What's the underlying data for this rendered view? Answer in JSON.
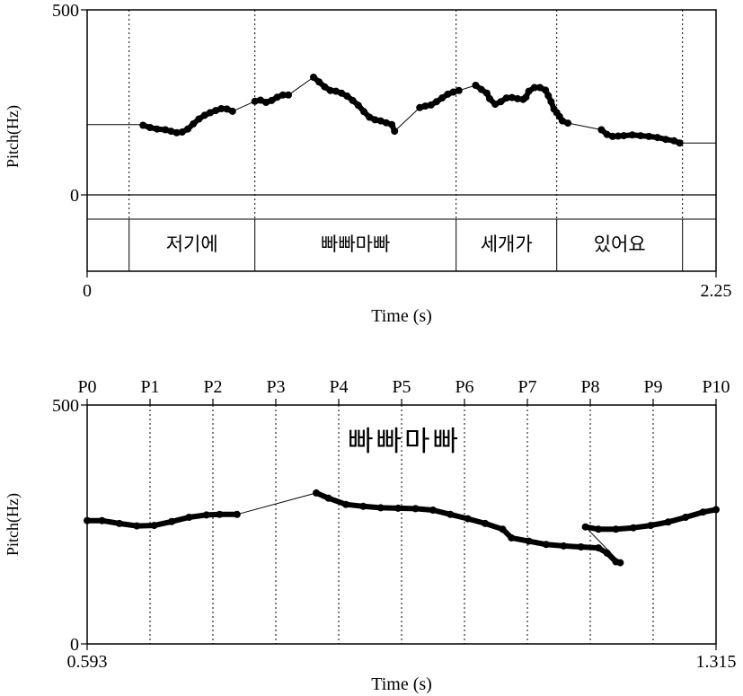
{
  "chart_data": [
    {
      "type": "line",
      "ylabel": "Pitch(Hz)",
      "xlabel": "Time (s)",
      "xlim": [
        0,
        2.25
      ],
      "ylim": [
        0,
        500
      ],
      "y_tick_labels": [
        "500",
        "0"
      ],
      "x_tick_labels": [
        "0",
        "2.25"
      ],
      "boundaries": [
        0.15,
        0.6,
        1.32,
        1.68,
        2.13
      ],
      "tier_labels": [
        {
          "start": 0.15,
          "end": 0.6,
          "text": "저기에"
        },
        {
          "start": 0.6,
          "end": 1.32,
          "text": "빠빠마빠"
        },
        {
          "start": 1.32,
          "end": 1.68,
          "text": "세개가"
        },
        {
          "start": 1.68,
          "end": 2.13,
          "text": "있어요"
        }
      ],
      "pitch_segments": [
        {
          "style": "line",
          "points": [
            [
              0,
              190
            ],
            [
              0.2,
              190
            ]
          ]
        },
        {
          "style": "dots",
          "points": [
            [
              0.2,
              188
            ],
            [
              0.225,
              182
            ],
            [
              0.25,
              178
            ],
            [
              0.28,
              176
            ],
            [
              0.3,
              172
            ],
            [
              0.32,
              168
            ],
            [
              0.34,
              170
            ],
            [
              0.36,
              178
            ],
            [
              0.38,
              192
            ],
            [
              0.4,
              205
            ],
            [
              0.42,
              215
            ],
            [
              0.44,
              222
            ],
            [
              0.46,
              228
            ],
            [
              0.48,
              233
            ],
            [
              0.5,
              232
            ],
            [
              0.52,
              226
            ]
          ]
        },
        {
          "style": "line",
          "points": [
            [
              0.52,
              226
            ],
            [
              0.6,
              253
            ]
          ]
        },
        {
          "style": "dots",
          "points": [
            [
              0.6,
              253
            ],
            [
              0.62,
              256
            ],
            [
              0.64,
              250
            ],
            [
              0.66,
              255
            ],
            [
              0.68,
              264
            ],
            [
              0.7,
              270
            ],
            [
              0.72,
              270
            ]
          ]
        },
        {
          "style": "line",
          "points": [
            [
              0.72,
              270
            ],
            [
              0.81,
              318
            ]
          ]
        },
        {
          "style": "dots",
          "points": [
            [
              0.81,
              318
            ],
            [
              0.83,
              305
            ],
            [
              0.85,
              292
            ],
            [
              0.87,
              282
            ],
            [
              0.89,
              280
            ],
            [
              0.91,
              275
            ],
            [
              0.93,
              267
            ],
            [
              0.95,
              255
            ],
            [
              0.97,
              242
            ],
            [
              0.99,
              225
            ],
            [
              1.01,
              210
            ],
            [
              1.03,
              203
            ],
            [
              1.05,
              200
            ],
            [
              1.07,
              195
            ],
            [
              1.09,
              190
            ],
            [
              1.1,
              172
            ]
          ]
        },
        {
          "style": "line",
          "points": [
            [
              1.1,
              172
            ],
            [
              1.19,
              236
            ]
          ]
        },
        {
          "style": "dots",
          "points": [
            [
              1.19,
              236
            ],
            [
              1.21,
              240
            ],
            [
              1.23,
              243
            ],
            [
              1.25,
              252
            ],
            [
              1.27,
              262
            ],
            [
              1.29,
              272
            ],
            [
              1.31,
              278
            ],
            [
              1.33,
              282
            ]
          ]
        },
        {
          "style": "line",
          "points": [
            [
              1.33,
              282
            ],
            [
              1.39,
              296
            ]
          ]
        },
        {
          "style": "dots",
          "points": [
            [
              1.39,
              296
            ],
            [
              1.41,
              285
            ],
            [
              1.43,
              275
            ],
            [
              1.44,
              260
            ],
            [
              1.46,
              245
            ],
            [
              1.48,
              252
            ],
            [
              1.5,
              262
            ],
            [
              1.52,
              263
            ],
            [
              1.54,
              260
            ],
            [
              1.56,
              258
            ],
            [
              1.57,
              264
            ],
            [
              1.58,
              280
            ],
            [
              1.6,
              290
            ],
            [
              1.62,
              290
            ],
            [
              1.64,
              283
            ],
            [
              1.65,
              268
            ],
            [
              1.66,
              252
            ],
            [
              1.67,
              232
            ],
            [
              1.68,
              222
            ],
            [
              1.69,
              212
            ],
            [
              1.7,
              200
            ],
            [
              1.72,
              194
            ]
          ]
        },
        {
          "style": "line",
          "points": [
            [
              1.72,
              194
            ],
            [
              1.84,
              176
            ]
          ]
        },
        {
          "style": "dots",
          "points": [
            [
              1.84,
              176
            ],
            [
              1.86,
              163
            ],
            [
              1.88,
              158
            ],
            [
              1.9,
              159
            ],
            [
              1.92,
              160
            ],
            [
              1.95,
              162
            ],
            [
              1.98,
              160
            ],
            [
              2.01,
              158
            ],
            [
              2.04,
              155
            ],
            [
              2.07,
              150
            ],
            [
              2.1,
              146
            ],
            [
              2.12,
              140
            ]
          ]
        },
        {
          "style": "line",
          "points": [
            [
              2.12,
              140
            ],
            [
              2.25,
              140
            ]
          ]
        }
      ]
    },
    {
      "type": "line",
      "title": "빠빠마빠",
      "ylabel": "Pitch(Hz)",
      "xlabel": "Time (s)",
      "xlim": [
        0.593,
        1.315
      ],
      "ylim": [
        0,
        500
      ],
      "y_tick_labels": [
        "500",
        "0"
      ],
      "x_tick_labels": [
        "0.593",
        "1.315"
      ],
      "p_labels": [
        "P0",
        "P1",
        "P2",
        "P3",
        "P4",
        "P5",
        "P6",
        "P7",
        "P8",
        "P9",
        "P10"
      ],
      "pitch_segments": [
        {
          "style": "dots",
          "points": [
            [
              0.593,
              258
            ],
            [
              0.61,
              258
            ],
            [
              0.63,
              252
            ],
            [
              0.65,
              247
            ],
            [
              0.67,
              248
            ],
            [
              0.69,
              256
            ],
            [
              0.71,
              265
            ],
            [
              0.73,
              270
            ],
            [
              0.745,
              271
            ],
            [
              0.765,
              271
            ]
          ]
        },
        {
          "style": "line",
          "points": [
            [
              0.765,
              271
            ],
            [
              0.856,
              316
            ]
          ]
        },
        {
          "style": "dots",
          "points": [
            [
              0.856,
              316
            ],
            [
              0.87,
              305
            ],
            [
              0.89,
              292
            ],
            [
              0.91,
              288
            ],
            [
              0.93,
              285
            ],
            [
              0.95,
              284
            ],
            [
              0.97,
              283
            ],
            [
              0.99,
              280
            ],
            [
              1.01,
              271
            ],
            [
              1.03,
              262
            ],
            [
              1.05,
              252
            ],
            [
              1.07,
              240
            ],
            [
              1.08,
              222
            ],
            [
              1.1,
              215
            ],
            [
              1.12,
              208
            ],
            [
              1.14,
              205
            ],
            [
              1.16,
              203
            ],
            [
              1.18,
              201
            ],
            [
              1.19,
              190
            ],
            [
              1.2,
              172
            ],
            [
              1.205,
              170
            ]
          ]
        },
        {
          "style": "line",
          "points": [
            [
              1.205,
              170
            ],
            [
              1.165,
              245
            ]
          ]
        },
        {
          "style": "dots",
          "points": [
            [
              1.165,
              245
            ],
            [
              1.18,
              240
            ],
            [
              1.2,
              240
            ],
            [
              1.22,
              243
            ],
            [
              1.24,
              248
            ],
            [
              1.26,
              255
            ],
            [
              1.28,
              265
            ],
            [
              1.3,
              276
            ],
            [
              1.315,
              281
            ]
          ]
        }
      ]
    }
  ]
}
